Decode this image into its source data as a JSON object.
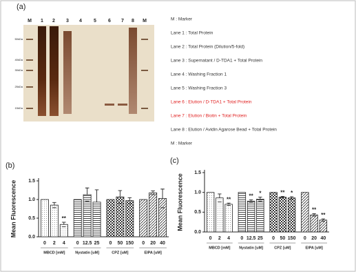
{
  "panel_a": {
    "label": "(a)",
    "lanes": [
      "M",
      "1",
      "2",
      "3",
      "4",
      "5",
      "6",
      "7",
      "8",
      "M"
    ],
    "size_markers": [
      "50kDa",
      "40kDa",
      "30kDa",
      "25kDa",
      "15kDa"
    ],
    "legend": [
      {
        "text": "M : Marker",
        "color": "#333333"
      },
      {
        "text": "Lane 1 : Total  Protein",
        "color": "#333333"
      },
      {
        "text": "Lane 2 : Total Protein (Dilution/5-fold)",
        "color": "#333333"
      },
      {
        "text": "Lane 3 : Supernatant / D-TDA1 + Total Protein",
        "color": "#333333"
      },
      {
        "text": "Lane 4 : Washing Fraction 1",
        "color": "#333333"
      },
      {
        "text": "Lane 5 : Washing Fraction 3",
        "color": "#333333"
      },
      {
        "text": "Lane 6 : Elution / D-TDA1 + Total  Protein",
        "color": "#e02020"
      },
      {
        "text": "Lane 7 : Elution / Biotin + Total  Protein",
        "color": "#e02020"
      },
      {
        "text": "Lane 8 : Elution / Avidin Agarose Bead + Total Protein",
        "color": "#333333"
      },
      {
        "text": "M : Marker",
        "color": "#333333"
      }
    ]
  },
  "chart_data": [
    {
      "type": "bar",
      "label": "(b)",
      "y_label": "Mean Fluorescence",
      "ylim": [
        0,
        1.5
      ],
      "yticks": [
        {
          "value": 0,
          "label": "0.0"
        },
        0.5,
        {
          "value": 1,
          "label": "1.0"
        },
        1.5
      ],
      "groups": [
        {
          "name": "MBCD [mM]",
          "categories": [
            "0",
            "2",
            "4"
          ],
          "values": [
            1.0,
            0.85,
            0.33
          ],
          "errors": [
            null,
            0.07,
            0.06
          ],
          "significance": [
            null,
            null,
            "**"
          ]
        },
        {
          "name": "Nystatin [uM]",
          "categories": [
            "0",
            "12.5",
            "25"
          ],
          "values": [
            1.0,
            1.13,
            0.93
          ],
          "errors": [
            null,
            0.18,
            0.33
          ],
          "significance": [
            null,
            null,
            null
          ]
        },
        {
          "name": "CPZ [uM]",
          "categories": [
            "0",
            "50",
            "150"
          ],
          "values": [
            1.0,
            1.07,
            0.97
          ],
          "errors": [
            null,
            0.17,
            0.08
          ],
          "significance": [
            null,
            null,
            null
          ]
        },
        {
          "name": "EIPA [uM]",
          "categories": [
            "0",
            "20",
            "40"
          ],
          "values": [
            1.0,
            1.18,
            1.03
          ],
          "errors": [
            null,
            0.05,
            0.25
          ],
          "significance": [
            null,
            null,
            null
          ]
        }
      ]
    },
    {
      "type": "bar",
      "label": "(c)",
      "y_label": "Mean Fluorescence",
      "ylim": [
        0,
        1.5
      ],
      "yticks": [
        {
          "value": 0,
          "label": "0.0"
        },
        0.5,
        {
          "value": 1,
          "label": "1.0"
        },
        1.5
      ],
      "groups": [
        {
          "name": "MBCD [mM]",
          "categories": [
            "0",
            "2",
            "4"
          ],
          "values": [
            1.0,
            0.86,
            0.7
          ],
          "errors": [
            null,
            0.1,
            0.03
          ],
          "significance": [
            null,
            null,
            "**"
          ]
        },
        {
          "name": "Nystatin [uM]",
          "categories": [
            "0",
            "12.5",
            "25"
          ],
          "values": [
            1.0,
            0.78,
            0.83
          ],
          "errors": [
            null,
            0.03,
            0.05
          ],
          "significance": [
            null,
            "**",
            "*"
          ]
        },
        {
          "name": "CPZ [uM]",
          "categories": [
            "0",
            "50",
            "150"
          ],
          "values": [
            1.0,
            0.88,
            0.86
          ],
          "errors": [
            null,
            0.02,
            0.03
          ],
          "significance": [
            null,
            "**",
            "*"
          ]
        },
        {
          "name": "EIPA [uM]",
          "categories": [
            "0",
            "20",
            "40"
          ],
          "values": [
            1.0,
            0.43,
            0.3
          ],
          "errors": [
            null,
            0.03,
            0.03
          ],
          "significance": [
            null,
            "**",
            "**"
          ]
        }
      ]
    }
  ]
}
